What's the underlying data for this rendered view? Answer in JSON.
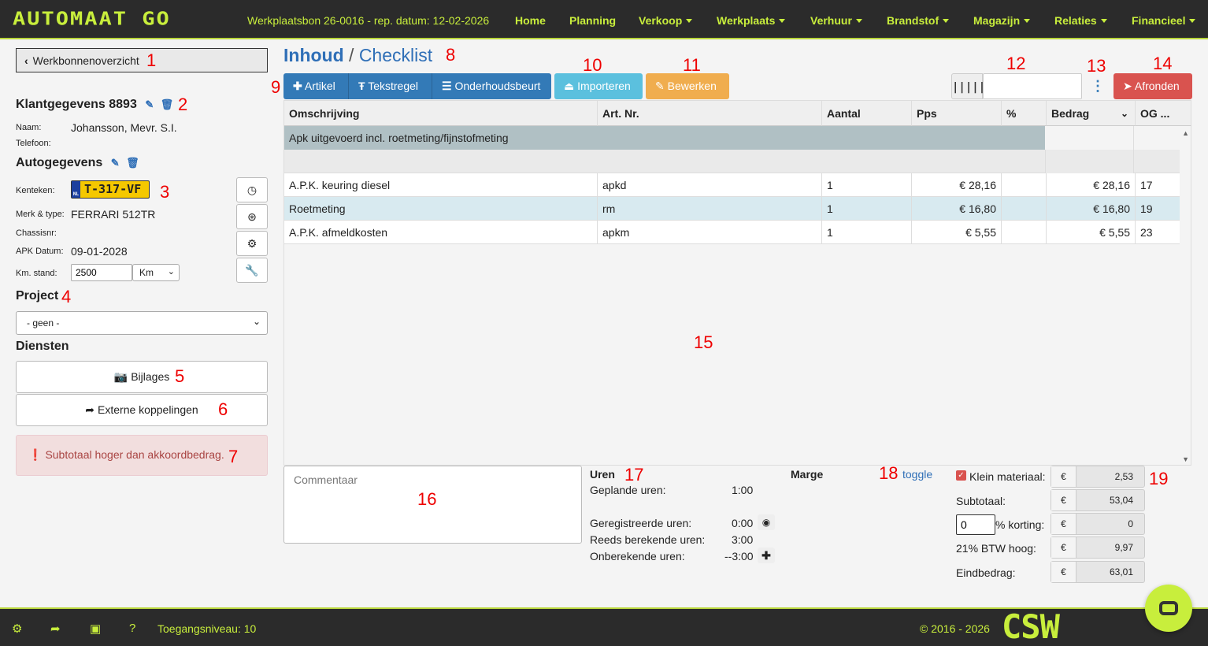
{
  "header": {
    "logo": "AUTOMAAT GO",
    "workorder": "Werkplaatsbon 26-0016 - rep. datum: 12-02-2026",
    "nav": [
      {
        "label": "Home",
        "dropdown": false
      },
      {
        "label": "Planning",
        "dropdown": false
      },
      {
        "label": "Verkoop",
        "dropdown": true
      },
      {
        "label": "Werkplaats",
        "dropdown": true
      },
      {
        "label": "Verhuur",
        "dropdown": true
      },
      {
        "label": "Brandstof",
        "dropdown": true
      },
      {
        "label": "Magazijn",
        "dropdown": true
      },
      {
        "label": "Relaties",
        "dropdown": true
      },
      {
        "label": "Financieel",
        "dropdown": true
      }
    ]
  },
  "markers": [
    "1",
    "2",
    "3",
    "4",
    "5",
    "6",
    "7",
    "8",
    "9",
    "10",
    "11",
    "12",
    "13",
    "14",
    "15",
    "16",
    "17",
    "18",
    "19"
  ],
  "sidebar": {
    "back_label": "Werkbonnenoverzicht",
    "customer_title": "Klantgegevens 8893",
    "name_label": "Naam:",
    "name_value": "Johansson, Mevr. S.I.",
    "phone_label": "Telefoon:",
    "car_title": "Autogegevens",
    "plate_label": "Kenteken:",
    "plate_value": "T-317-VF",
    "plate_country": "NL",
    "make_label": "Merk & type:",
    "make_value": "FERRARI 512TR",
    "chassis_label": "Chassisnr:",
    "apk_label": "APK Datum:",
    "apk_value": "09-01-2028",
    "km_label": "Km. stand:",
    "km_value": "2500",
    "km_unit": "Km",
    "project_title": "Project",
    "project_value": "- geen -",
    "services_title": "Diensten",
    "attachments_label": "Bijlages",
    "external_label": "Externe koppelingen",
    "alert_text": "Subtotaal hoger dan akkoordbedrag."
  },
  "main": {
    "title_active": "Inhoud",
    "title_sep": " / ",
    "title_link": "Checklist",
    "toolbar": {
      "artikel": "Artikel",
      "tekstregel": "Tekstregel",
      "onderhoudsbeurt": "Onderhoudsbeurt",
      "importeren": "Importeren",
      "bewerken": "Bewerken",
      "afronden": "Afronden",
      "barcode_value": ""
    },
    "colors": {
      "primary": "#337ab7",
      "info": "#5bc0de",
      "warning": "#f0ad4e",
      "danger": "#d9534f",
      "accent": "#c8ee3c"
    },
    "table": {
      "headers": [
        "Omschrijving",
        "Art. Nr.",
        "Aantal",
        "Pps",
        "%",
        "Bedrag",
        "OG ..."
      ],
      "group_row": "Apk uitgevoerd incl. roetmeting/fijnstofmeting",
      "rows": [
        {
          "desc": "A.P.K. keuring diesel",
          "art": "apkd",
          "qty": "1",
          "pps": "€ 28,16",
          "pct": "",
          "amount": "€ 28,16",
          "og": "17"
        },
        {
          "desc": "Roetmeting",
          "art": "rm",
          "qty": "1",
          "pps": "€ 16,80",
          "pct": "",
          "amount": "€ 16,80",
          "og": "19"
        },
        {
          "desc": "A.P.K. afmeldkosten",
          "art": "apkm",
          "qty": "1",
          "pps": "€ 5,55",
          "pct": "",
          "amount": "€ 5,55",
          "og": "23"
        }
      ]
    },
    "comment_placeholder": "Commentaar",
    "hours": {
      "title": "Uren",
      "planned_label": "Geplande uren:",
      "planned_value": "1:00",
      "registered_label": "Geregistreerde uren:",
      "registered_value": "0:00",
      "calculated_label": "Reeds berekende uren:",
      "calculated_value": "3:00",
      "uncalculated_label": "Onberekende uren:",
      "uncalculated_value": "--3:00"
    },
    "margin_title": "Marge",
    "toggle_label": "toggle",
    "totals": {
      "small_material_label": "Klein materiaal:",
      "small_material_checked": true,
      "small_material_value": "2,53",
      "subtotal_label": "Subtotaal:",
      "subtotal_value": "53,04",
      "discount_input": "0",
      "discount_label": "% korting:",
      "discount_value": "0",
      "vat_label": "21% BTW hoog:",
      "vat_value": "9,97",
      "total_label": "Eindbedrag:",
      "total_value": "63,01",
      "currency": "€"
    }
  },
  "footer": {
    "access_level": "Toegangsniveau: 10",
    "copyright": "© 2016 - 2026",
    "brand": "CSW"
  }
}
